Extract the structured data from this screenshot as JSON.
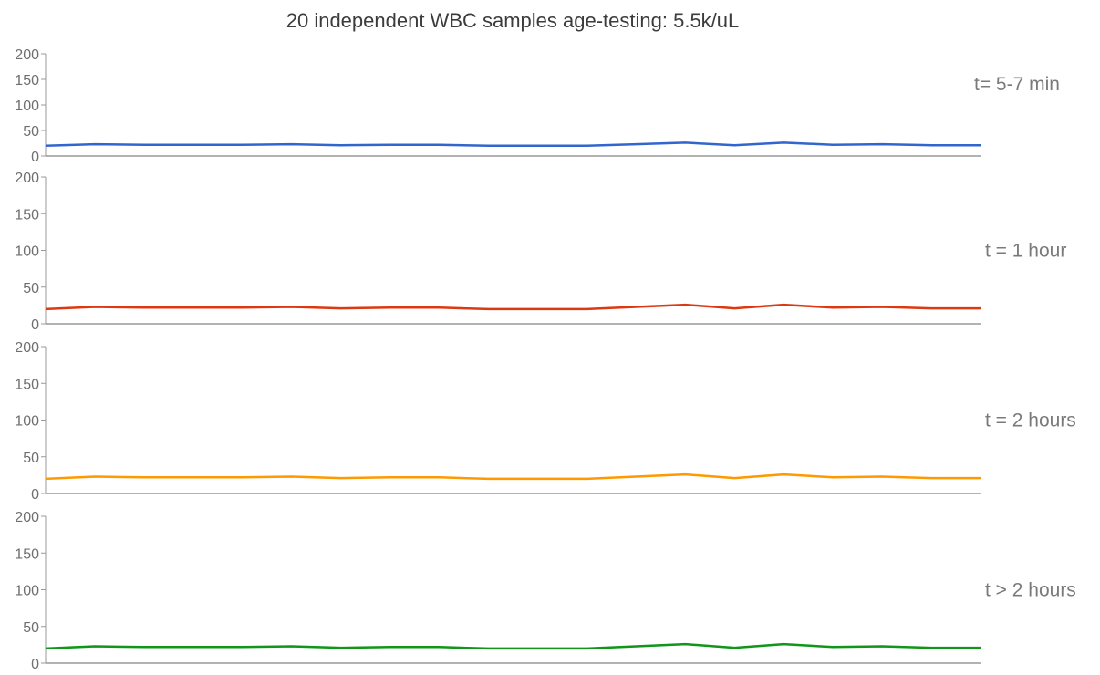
{
  "chart_data": {
    "type": "line",
    "title": "20 independent WBC samples age-testing: 5.5k/uL",
    "xlabel": "",
    "ylabel": "",
    "ylim": [
      0,
      200
    ],
    "y_ticks": [
      0,
      50,
      100,
      150,
      200
    ],
    "x": [
      1,
      2,
      3,
      4,
      5,
      6,
      7,
      8,
      9,
      10,
      11,
      12,
      13,
      14,
      15,
      16,
      17,
      18,
      19,
      20
    ],
    "grid": false,
    "legend": "right",
    "panels": [
      {
        "label": "t= 5-7 min",
        "color": "#3366cc",
        "values": [
          20,
          23,
          22,
          22,
          22,
          23,
          21,
          22,
          22,
          20,
          20,
          20,
          23,
          26,
          21,
          26,
          22,
          23,
          21,
          21
        ]
      },
      {
        "label": "t = 1 hour",
        "color": "#dc3912",
        "values": [
          20,
          23,
          22,
          22,
          22,
          23,
          21,
          22,
          22,
          20,
          20,
          20,
          23,
          26,
          21,
          26,
          22,
          23,
          21,
          21
        ]
      },
      {
        "label": "t = 2 hours",
        "color": "#ff9900",
        "values": [
          20,
          23,
          22,
          22,
          22,
          23,
          21,
          22,
          22,
          20,
          20,
          20,
          23,
          26,
          21,
          26,
          22,
          23,
          21,
          21
        ]
      },
      {
        "label": "t > 2 hours",
        "color": "#109618",
        "values": [
          20,
          23,
          22,
          22,
          22,
          23,
          21,
          22,
          22,
          20,
          20,
          20,
          23,
          26,
          21,
          26,
          22,
          23,
          21,
          21
        ]
      }
    ]
  }
}
